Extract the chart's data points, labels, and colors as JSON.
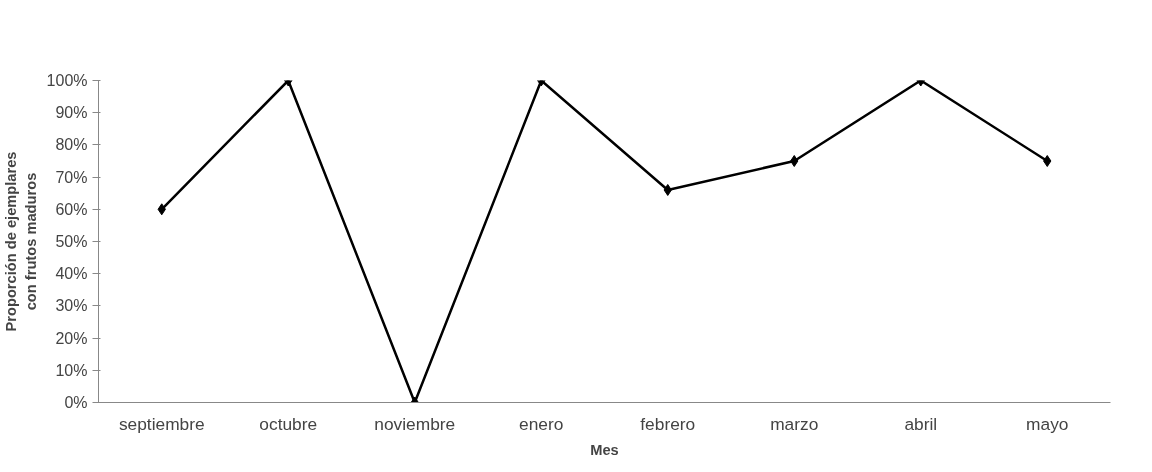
{
  "chart_data": {
    "type": "line",
    "xlabel": "Mes",
    "ylabel": "Proporción de ejemplares con frutos maduros",
    "categories": [
      "septiembre",
      "octubre",
      "noviembre",
      "enero",
      "febrero",
      "marzo",
      "abril",
      "mayo"
    ],
    "series": [
      {
        "color": "#000000",
        "values": [
          60,
          100,
          0,
          100,
          66,
          75,
          100,
          75
        ]
      }
    ],
    "ylim": [
      0,
      100
    ],
    "yticks": [
      {
        "value": 0,
        "label": "0%"
      },
      {
        "value": 10,
        "label": "10%"
      },
      {
        "value": 20,
        "label": "20%"
      },
      {
        "value": 30,
        "label": "30%"
      },
      {
        "value": 40,
        "label": "40%"
      },
      {
        "value": 50,
        "label": "50%"
      },
      {
        "value": 60,
        "label": "60%"
      },
      {
        "value": 70,
        "label": "70%"
      },
      {
        "value": 80,
        "label": "80%"
      },
      {
        "value": 90,
        "label": "90%"
      },
      {
        "value": 100,
        "label": "100%"
      }
    ],
    "marker": "diamond",
    "line_style": "solid",
    "grid": false
  }
}
